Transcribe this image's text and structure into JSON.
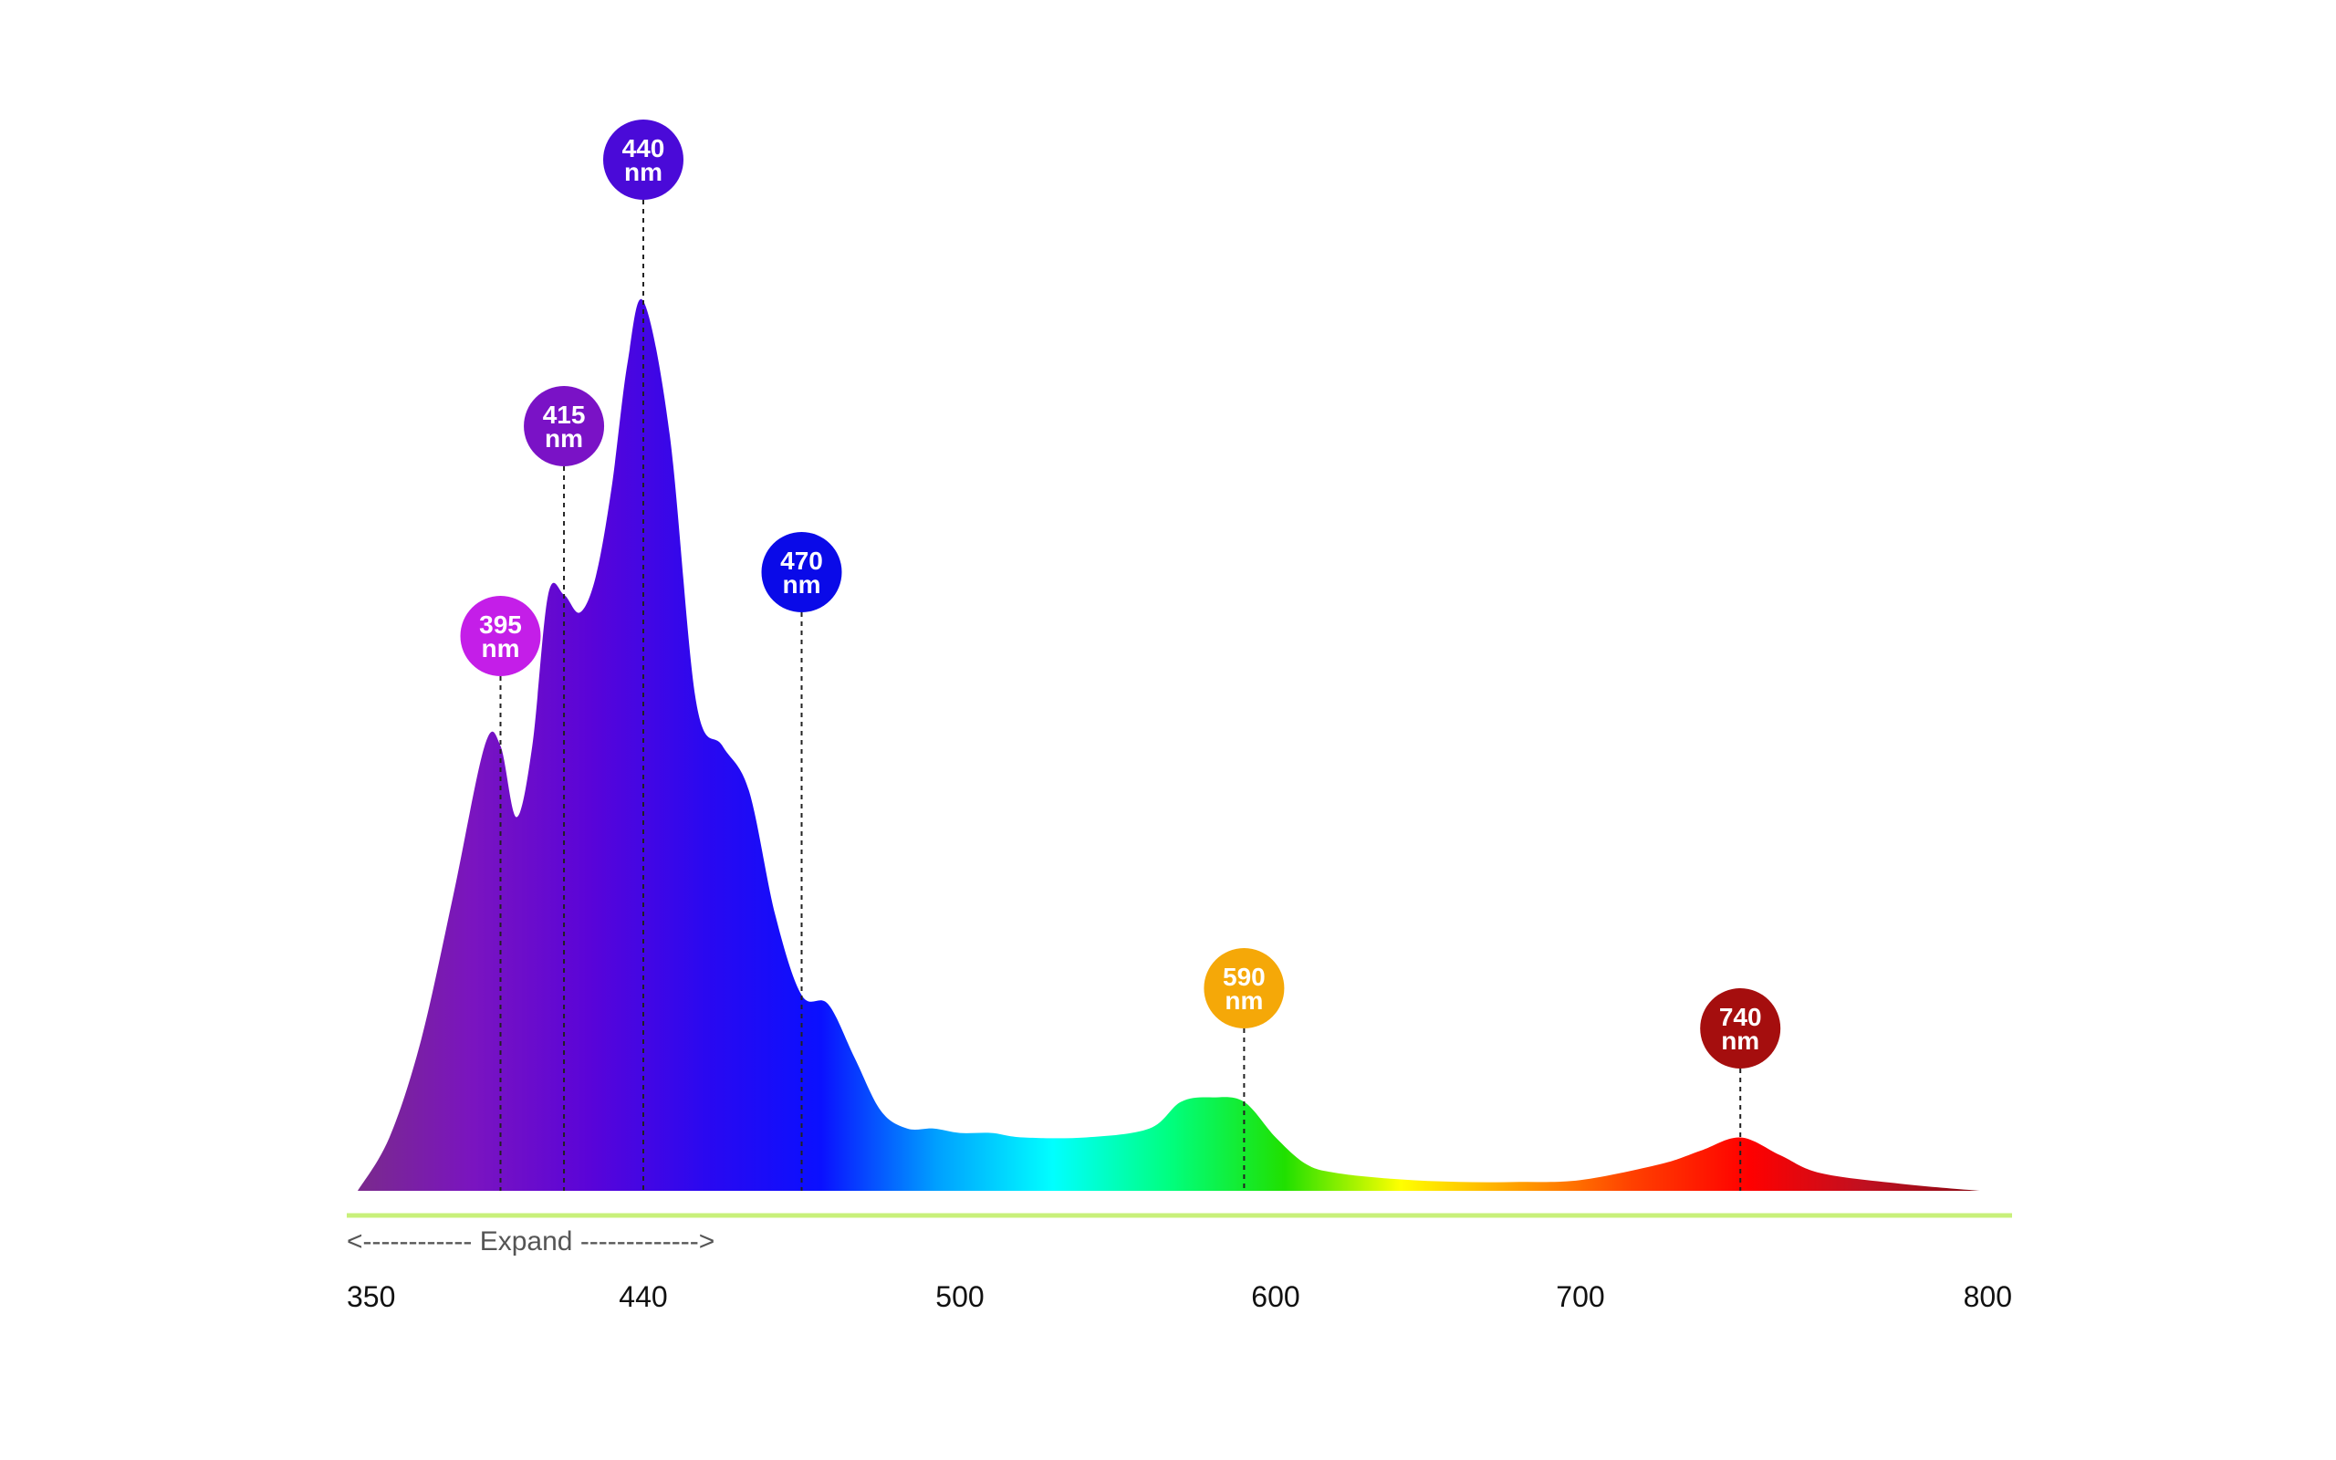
{
  "chart_data": {
    "type": "area",
    "title": "",
    "xlabel": "",
    "ylabel": "",
    "x_ticks": [
      350,
      440,
      500,
      600,
      700,
      800
    ],
    "xlim": [
      350,
      800
    ],
    "ylim": [
      0,
      1
    ],
    "grid": false,
    "legend": "none",
    "spectrum": {
      "x": [
        350,
        360,
        370,
        380,
        390,
        395,
        400,
        405,
        410,
        415,
        420,
        425,
        430,
        435,
        440,
        445,
        450,
        455,
        460,
        465,
        470,
        475,
        480,
        485,
        490,
        495,
        500,
        510,
        520,
        540,
        560,
        570,
        580,
        590,
        600,
        610,
        620,
        640,
        660,
        680,
        700,
        720,
        730,
        740,
        750,
        760,
        780,
        800
      ],
      "y": [
        0.0,
        0.06,
        0.17,
        0.33,
        0.5,
        0.5,
        0.42,
        0.5,
        0.67,
        0.67,
        0.65,
        0.69,
        0.79,
        0.93,
        1.0,
        0.85,
        0.55,
        0.5,
        0.45,
        0.31,
        0.22,
        0.21,
        0.15,
        0.09,
        0.07,
        0.07,
        0.065,
        0.065,
        0.06,
        0.06,
        0.07,
        0.1,
        0.105,
        0.1,
        0.06,
        0.03,
        0.02,
        0.013,
        0.01,
        0.01,
        0.012,
        0.03,
        0.045,
        0.06,
        0.04,
        0.02,
        0.008,
        0.0
      ]
    },
    "peaks": [
      {
        "wavelength": 395,
        "line1": "395",
        "line2": "nm",
        "color": "#c41ee8"
      },
      {
        "wavelength": 415,
        "line1": "415",
        "line2": "nm",
        "color": "#7a12c6"
      },
      {
        "wavelength": 440,
        "line1": "440",
        "line2": "nm",
        "color": "#4a0ad8"
      },
      {
        "wavelength": 470,
        "line1": "470",
        "line2": "nm",
        "color": "#0a0ae8"
      },
      {
        "wavelength": 590,
        "line1": "590",
        "line2": "nm",
        "color": "#f5a808"
      },
      {
        "wavelength": 740,
        "line1": "740",
        "line2": "nm",
        "color": "#a50e0e"
      }
    ],
    "colors": {
      "baseline": "#c8f07a",
      "peak_line": "#222222",
      "gradient": [
        "#7a2a8c",
        "#7a14c0",
        "#5a04d8",
        "#2a08f0",
        "#0a10ff",
        "#00a0ff",
        "#00ffff",
        "#00ff80",
        "#20e000",
        "#ffff00",
        "#ffa000",
        "#ff4000",
        "#ff0000",
        "#c01020",
        "#8a0a14"
      ]
    },
    "expand_label": "<------------ Expand ------------->"
  }
}
